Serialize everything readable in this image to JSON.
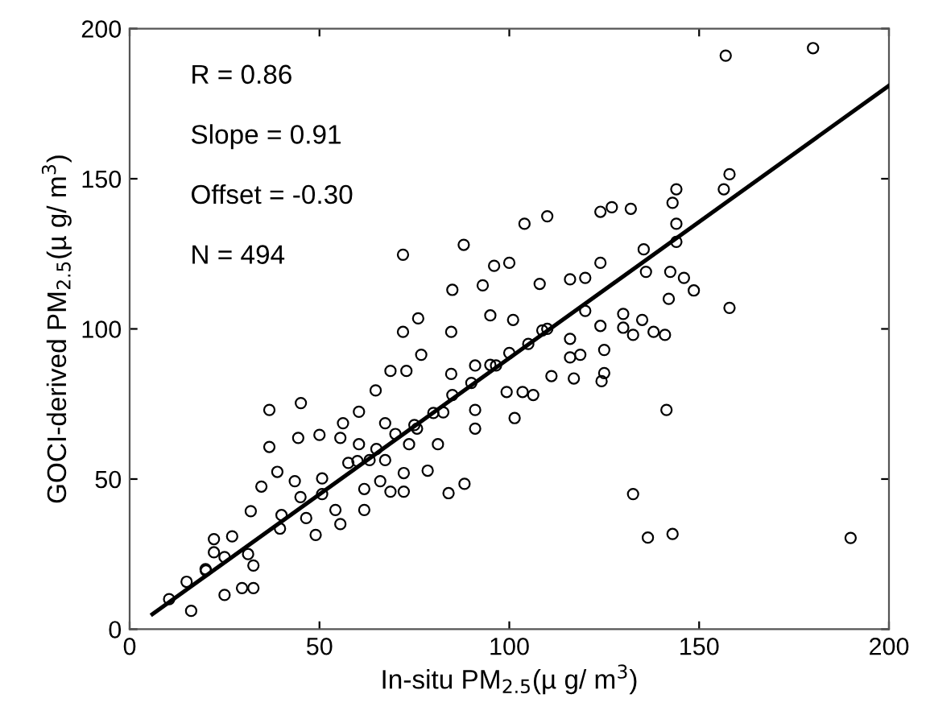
{
  "chart_data": {
    "type": "scatter",
    "xlabel": "In-situ PM$_{2.5}$(µ g/ m$^{3}$)",
    "ylabel": "GOCI-derived PM$_{2.5}$(µ g/ m$^{3}$)",
    "annotations": [
      "R = 0.86",
      "Slope = 0.91",
      "Offset = -0.30",
      "N = 494"
    ],
    "xlim": [
      0,
      200
    ],
    "ylim": [
      0,
      200
    ],
    "xticks": [
      0,
      50,
      100,
      150,
      200
    ],
    "yticks": [
      0,
      50,
      100,
      150,
      200
    ],
    "grid": false,
    "legend": false,
    "marker": "circle",
    "series": [
      {
        "color": "#000000",
        "x": [
          157,
          180,
          72,
          88,
          104,
          110,
          124,
          127,
          132,
          144,
          143,
          144,
          144,
          156.5,
          158,
          158,
          135.4,
          124,
          96,
          100,
          142.4,
          146,
          148.6,
          142,
          138,
          141,
          85,
          93,
          108,
          116,
          120,
          136,
          72,
          76,
          84.7,
          132.6,
          16.2,
          10.4,
          25,
          29.6,
          32.6,
          15,
          20.1,
          22.2,
          27,
          32.6,
          31.2,
          22.2,
          36.8,
          36.8,
          34.7,
          38.9,
          31.9,
          39.6,
          46.5,
          49,
          45.1,
          44.4,
          43.5,
          50.7,
          50.7,
          50,
          56.2,
          60.4,
          55.5,
          54.2,
          61.8,
          60.4,
          68.7,
          64.8,
          72.9,
          76.8,
          68.7,
          72.2,
          72.2,
          78.5,
          84,
          88.2,
          91,
          101.4,
          99.3,
          103.5,
          106.3,
          91,
          84.7,
          111.1,
          117,
          124.3,
          125,
          141.4,
          132.6,
          136.5,
          143,
          189.9,
          81.2,
          82.6,
          73.6,
          75.7,
          67.3,
          67.3,
          63.2,
          55.5,
          57.6,
          66,
          61.8,
          96.5,
          91,
          118.7,
          116,
          20,
          25,
          40,
          45,
          60,
          70,
          80,
          90,
          100,
          110,
          120,
          65,
          75,
          85,
          95,
          105,
          130,
          95,
          101,
          108.7,
          124,
          130,
          135,
          116,
          125
        ],
        "values": [
          191,
          193.5,
          124.7,
          128,
          135,
          137.5,
          139,
          140.5,
          140,
          146.5,
          142,
          135,
          129,
          146.5,
          151.5,
          107,
          126.5,
          122,
          121,
          122,
          119,
          117,
          112.8,
          110,
          99,
          98,
          113,
          114.5,
          115,
          116.5,
          117,
          119,
          99,
          103.5,
          99,
          98,
          6.1,
          10,
          11.4,
          13.7,
          13.7,
          15.8,
          19.5,
          25.6,
          30.9,
          21.2,
          25,
          30,
          73,
          60.7,
          47.5,
          52.4,
          39.3,
          33.5,
          37,
          31.4,
          75.3,
          63.7,
          49.3,
          50.2,
          45,
          64.7,
          68.6,
          72.4,
          35,
          39.7,
          39.7,
          61.6,
          86,
          79.5,
          86,
          91.4,
          45.8,
          45.8,
          52,
          52.8,
          45.3,
          48.4,
          66.8,
          70.3,
          79,
          79,
          78,
          73,
          85,
          84.3,
          83.5,
          82.6,
          85.3,
          73,
          45,
          30.5,
          31.7,
          30.4,
          61.6,
          72.2,
          61.6,
          66.8,
          68.6,
          56.3,
          56.3,
          63.7,
          55.4,
          49.3,
          46.7,
          87.8,
          87.8,
          91.4,
          90.5,
          20,
          24,
          38,
          44,
          56,
          65,
          72,
          82,
          92,
          100,
          106,
          60,
          68,
          78,
          88,
          95,
          105,
          104.5,
          103,
          99.5,
          101,
          100.4,
          103,
          96.7,
          93
        ]
      },
      {
        "type": "line",
        "color": "#000000",
        "line_style": "solid",
        "marker": "none",
        "x": [
          6,
          200
        ],
        "values": [
          5,
          181
        ]
      }
    ]
  }
}
